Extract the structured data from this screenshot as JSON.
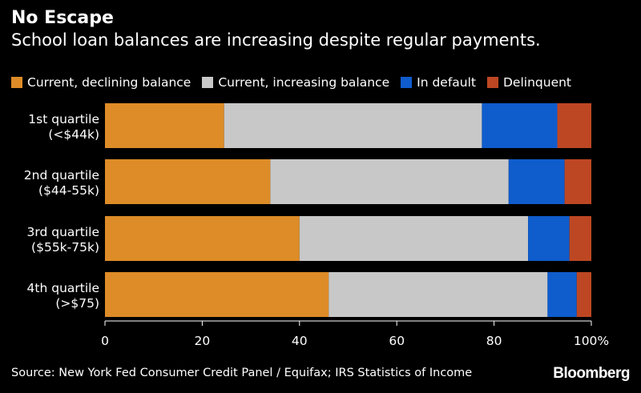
{
  "header": {
    "title": "No Escape",
    "subtitle": "School loan balances are increasing despite regular payments."
  },
  "colors": {
    "background": "#000000",
    "current_declining": "#dd8c27",
    "current_increasing": "#c8c8c8",
    "in_default": "#0f5ccc",
    "delinquent": "#bd4723"
  },
  "chart_data": {
    "type": "bar",
    "orientation": "horizontal",
    "stacked": true,
    "categories": [
      {
        "line1": "1st quartile",
        "line2": "(<$44k)"
      },
      {
        "line1": "2nd quartile",
        "line2": "($44-55k)"
      },
      {
        "line1": "3rd quartile",
        "line2": "($55k-75k)"
      },
      {
        "line1": "4th quartile",
        "line2": "(>$75)"
      }
    ],
    "series": [
      {
        "name": "Current, declining balance",
        "color": "#dd8c27",
        "values": [
          24.5,
          34,
          40,
          46
        ]
      },
      {
        "name": "Current, increasing balance",
        "color": "#c8c8c8",
        "values": [
          53,
          49,
          47,
          45
        ]
      },
      {
        "name": "In default",
        "color": "#0f5ccc",
        "values": [
          15.5,
          11.5,
          8.5,
          6
        ]
      },
      {
        "name": "Delinquent",
        "color": "#bd4723",
        "values": [
          7,
          5.5,
          4.5,
          3
        ]
      }
    ],
    "xlim": [
      0,
      100
    ],
    "xticks": [
      "0",
      "20",
      "40",
      "60",
      "80",
      "100%"
    ],
    "xtick_values": [
      0,
      20,
      40,
      60,
      80,
      100
    ],
    "legend_position": "top",
    "grid": false
  },
  "footer": {
    "source": "Source: New York Fed Consumer Credit Panel / Equifax; IRS Statistics of Income",
    "brand": "Bloomberg"
  }
}
